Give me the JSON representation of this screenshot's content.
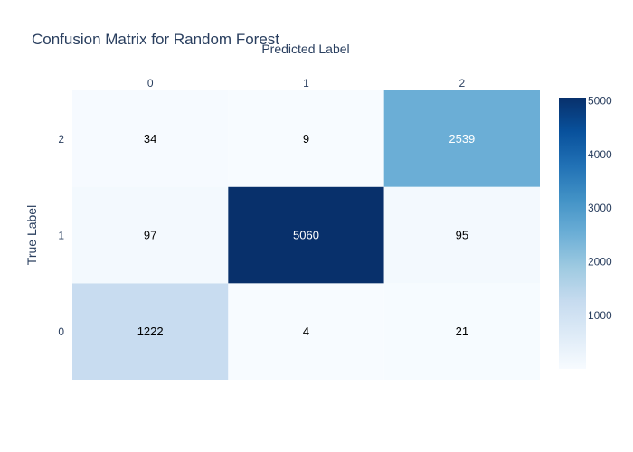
{
  "chart_data": {
    "type": "heatmap",
    "title": "Confusion Matrix for Random Forest",
    "xlabel": "Predicted Label",
    "ylabel": "True Label",
    "x_categories": [
      "0",
      "1",
      "2"
    ],
    "y_categories": [
      "0",
      "1",
      "2"
    ],
    "z": [
      [
        1222,
        4,
        21
      ],
      [
        97,
        5060,
        95
      ],
      [
        34,
        9,
        2539
      ]
    ],
    "colorscale": "Blues",
    "zmin": 4,
    "zmax": 5060,
    "colorbar_ticks": [
      1000,
      2000,
      3000,
      4000,
      5000
    ],
    "x_axis_side": "top",
    "grid": false,
    "colors": {
      "text": "#2a3f5f",
      "low": "#f7fbff",
      "high": "#08306b"
    }
  }
}
